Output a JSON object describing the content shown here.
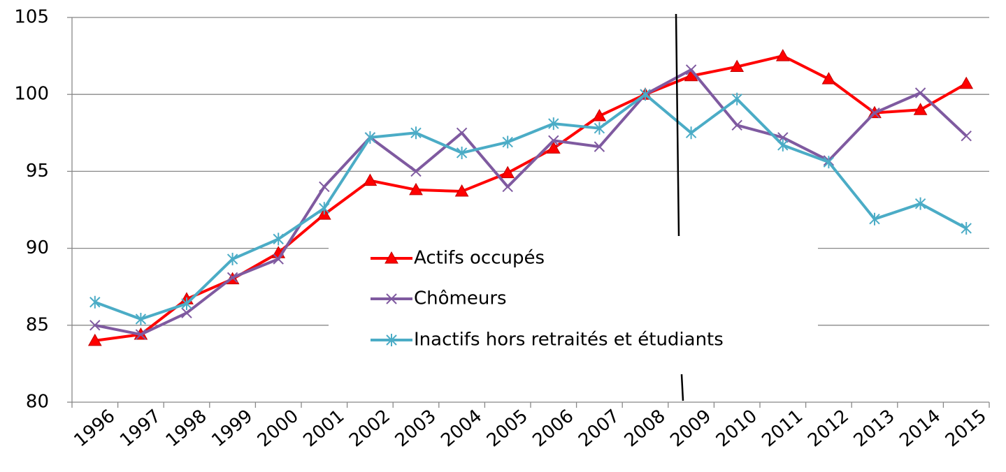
{
  "chart_data": {
    "type": "line",
    "categories": [
      "1996",
      "1997",
      "1998",
      "1999",
      "2000",
      "2001",
      "2002",
      "2003",
      "2004",
      "2005",
      "2006",
      "2007",
      "2008",
      "2009",
      "2010",
      "2011",
      "2012",
      "2013",
      "2014",
      "2015"
    ],
    "series": [
      {
        "name": "Actifs occupés",
        "color": "#ff0000",
        "marker": "triangle",
        "values": [
          84.0,
          84.4,
          86.7,
          88.0,
          89.7,
          92.2,
          94.4,
          93.8,
          93.7,
          94.9,
          96.5,
          98.6,
          100,
          101.2,
          101.8,
          102.5,
          101.0,
          98.8,
          99.0,
          100.7
        ]
      },
      {
        "name": "Chômeurs",
        "color": "#7f5aa0",
        "marker": "x",
        "values": [
          85.0,
          84.4,
          85.8,
          88.1,
          89.3,
          94.0,
          97.2,
          95.0,
          97.5,
          94.0,
          97.0,
          96.6,
          100,
          101.6,
          98.0,
          97.2,
          95.7,
          98.8,
          100.1,
          97.3
        ]
      },
      {
        "name": "Inactifs hors retraités et étudiants",
        "color": "#4bacc6",
        "marker": "star",
        "values": [
          86.5,
          85.4,
          86.4,
          89.3,
          90.6,
          92.6,
          97.2,
          97.5,
          96.2,
          96.9,
          98.1,
          97.8,
          100,
          97.5,
          99.7,
          96.7,
          95.6,
          91.9,
          92.9,
          91.3
        ]
      }
    ],
    "ylim": [
      80,
      105
    ],
    "yticks": [
      80,
      85,
      90,
      95,
      100,
      105
    ],
    "grid": true
  }
}
